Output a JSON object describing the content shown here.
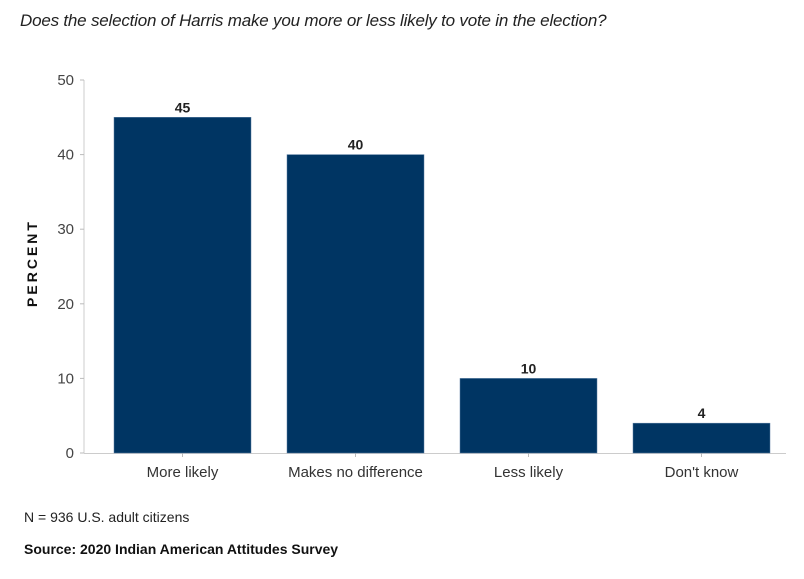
{
  "chart_data": {
    "type": "bar",
    "title": "Does the selection of Harris make you more or less likely to vote in the election?",
    "xlabel": "",
    "ylabel": "PERCENT",
    "categories": [
      "More likely",
      "Makes no difference",
      "Less likely",
      "Don't know"
    ],
    "values": [
      45,
      40,
      10,
      4
    ],
    "data_labels": [
      "45",
      "40",
      "10",
      "4"
    ],
    "ylim": [
      0,
      50
    ],
    "yticks": [
      0,
      10,
      20,
      30,
      40,
      50
    ],
    "grid": false,
    "bar_color": "#003563",
    "legend": "none"
  },
  "footer": {
    "note": "N = 936 U.S. adult citizens",
    "source": "Source: 2020 Indian American Attitudes Survey"
  }
}
